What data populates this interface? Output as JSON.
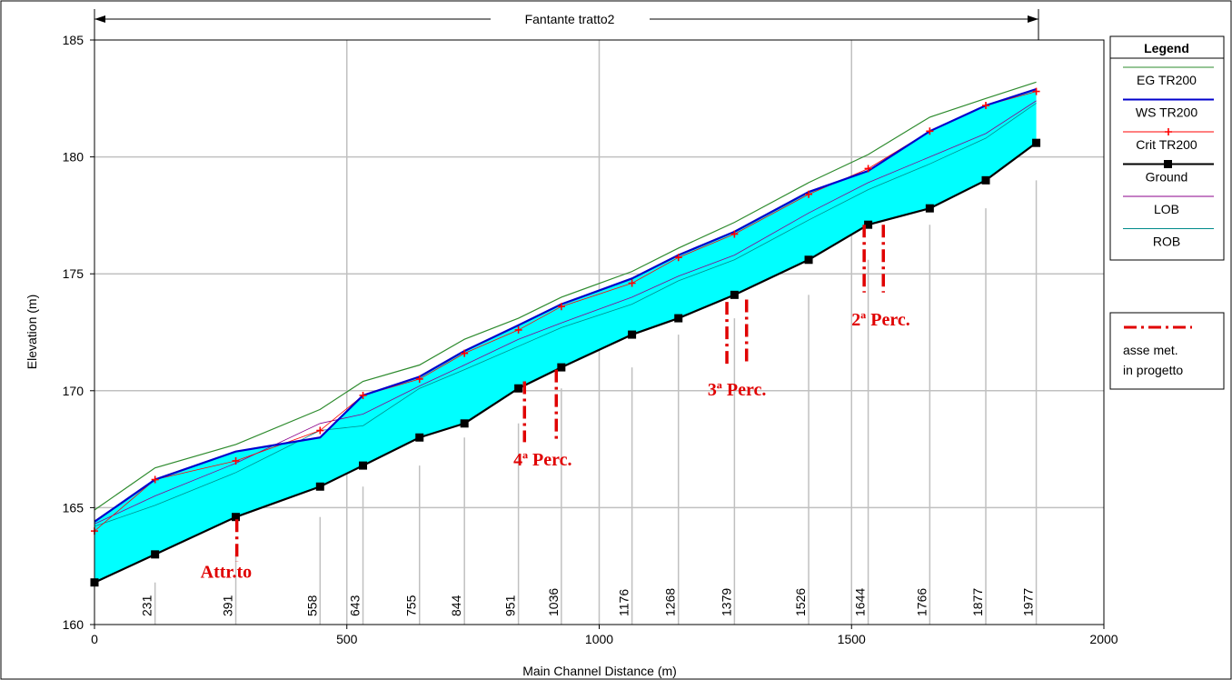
{
  "chart_data": {
    "type": "area",
    "title": "Fantante tratto2",
    "xlabel": "Main Channel Distance (m)",
    "ylabel": "Elevation (m)",
    "xlim": [
      0,
      2000
    ],
    "ylim": [
      160,
      185
    ],
    "x_ticks": [
      0,
      500,
      1000,
      1500,
      2000
    ],
    "y_ticks": [
      160,
      165,
      170,
      175,
      180,
      185
    ],
    "grid": true,
    "legend_title": "Legend",
    "legend_position": "right",
    "station_labels": [
      {
        "x": 120,
        "label": "231"
      },
      {
        "x": 280,
        "label": "391"
      },
      {
        "x": 447,
        "label": "558"
      },
      {
        "x": 532,
        "label": "643"
      },
      {
        "x": 644,
        "label": "755"
      },
      {
        "x": 733,
        "label": "844"
      },
      {
        "x": 840,
        "label": "951"
      },
      {
        "x": 925,
        "label": "1036"
      },
      {
        "x": 1065,
        "label": "1176"
      },
      {
        "x": 1157,
        "label": "1268"
      },
      {
        "x": 1268,
        "label": "1379"
      },
      {
        "x": 1415,
        "label": "1526"
      },
      {
        "x": 1533,
        "label": "1644"
      },
      {
        "x": 1655,
        "label": "1766"
      },
      {
        "x": 1766,
        "label": "1877"
      },
      {
        "x": 1866,
        "label": "1977"
      }
    ],
    "series": [
      {
        "name": "EG  TR200",
        "color": "#2e8b2e",
        "x": [
          0,
          120,
          280,
          447,
          532,
          644,
          733,
          840,
          925,
          1065,
          1157,
          1268,
          1415,
          1533,
          1655,
          1766,
          1866
        ],
        "values": [
          164.9,
          166.7,
          167.7,
          169.2,
          170.4,
          171.1,
          172.2,
          173.1,
          174.0,
          175.1,
          176.1,
          177.2,
          178.9,
          180.1,
          181.7,
          182.5,
          183.2
        ]
      },
      {
        "name": "WS  TR200",
        "color": "#0000cc",
        "x": [
          0,
          120,
          280,
          447,
          532,
          644,
          733,
          840,
          925,
          1065,
          1157,
          1268,
          1415,
          1533,
          1655,
          1766,
          1866
        ],
        "values": [
          164.4,
          166.2,
          167.4,
          168.0,
          169.8,
          170.6,
          171.7,
          172.8,
          173.7,
          174.8,
          175.8,
          176.8,
          178.5,
          179.4,
          181.1,
          182.2,
          182.9
        ]
      },
      {
        "name": "Crit  TR200",
        "color": "#ff0000",
        "x": [
          0,
          120,
          280,
          447,
          532,
          644,
          733,
          840,
          925,
          1065,
          1157,
          1268,
          1415,
          1533,
          1655,
          1766,
          1866
        ],
        "values": [
          164.0,
          166.2,
          167.0,
          168.3,
          169.8,
          170.5,
          171.6,
          172.6,
          173.6,
          174.6,
          175.7,
          176.7,
          178.4,
          179.5,
          181.1,
          182.2,
          182.8
        ]
      },
      {
        "name": "Ground",
        "color": "#000000",
        "x": [
          0,
          120,
          280,
          447,
          532,
          644,
          733,
          840,
          925,
          1065,
          1157,
          1268,
          1415,
          1533,
          1655,
          1766,
          1866
        ],
        "values": [
          161.8,
          163.0,
          164.6,
          165.9,
          166.8,
          168.0,
          168.6,
          170.1,
          171.0,
          172.4,
          173.1,
          174.1,
          175.6,
          177.1,
          177.8,
          179.0,
          180.6
        ]
      },
      {
        "name": "LOB",
        "color": "#8b008b",
        "x": [
          0,
          120,
          280,
          447,
          532,
          644,
          733,
          840,
          925,
          1065,
          1157,
          1268,
          1415,
          1533,
          1655,
          1766,
          1866
        ],
        "values": [
          164.3,
          165.5,
          166.9,
          168.6,
          169.0,
          170.2,
          171.1,
          172.2,
          172.9,
          174.0,
          174.9,
          175.8,
          177.6,
          178.9,
          180.0,
          181.0,
          182.4
        ]
      },
      {
        "name": "ROB",
        "color": "#008b8b",
        "x": [
          0,
          120,
          280,
          447,
          532,
          644,
          733,
          840,
          925,
          1065,
          1157,
          1268,
          1415,
          1533,
          1655,
          1766,
          1866
        ],
        "values": [
          164.2,
          165.1,
          166.5,
          168.3,
          168.5,
          170.1,
          170.9,
          171.9,
          172.7,
          173.7,
          174.7,
          175.6,
          177.3,
          178.6,
          179.7,
          180.8,
          182.3
        ]
      }
    ],
    "annotation_legend": {
      "line_color": "#e00000",
      "text": [
        "asse met.",
        "in progetto"
      ]
    },
    "annotations": [
      {
        "label": "Attr.to",
        "lines": [
          {
            "x": 282,
            "y1": 162.7,
            "y2": 164.5
          }
        ],
        "label_pos": [
          210,
          162.0
        ]
      },
      {
        "label": "4ª Perc.",
        "lines": [
          {
            "x": 852,
            "y1": 167.8,
            "y2": 170.4
          },
          {
            "x": 915,
            "y1": 167.8,
            "y2": 170.9
          }
        ],
        "label_pos": [
          830,
          166.8
        ]
      },
      {
        "label": "3ª Perc.",
        "lines": [
          {
            "x": 1253,
            "y1": 171.0,
            "y2": 173.8
          },
          {
            "x": 1292,
            "y1": 171.1,
            "y2": 173.9
          }
        ],
        "label_pos": [
          1215,
          169.8
        ]
      },
      {
        "label": "2ª Perc.",
        "lines": [
          {
            "x": 1525,
            "y1": 174.2,
            "y2": 177.1
          },
          {
            "x": 1563,
            "y1": 174.2,
            "y2": 177.1
          }
        ],
        "label_pos": [
          1500,
          172.8
        ]
      }
    ]
  }
}
